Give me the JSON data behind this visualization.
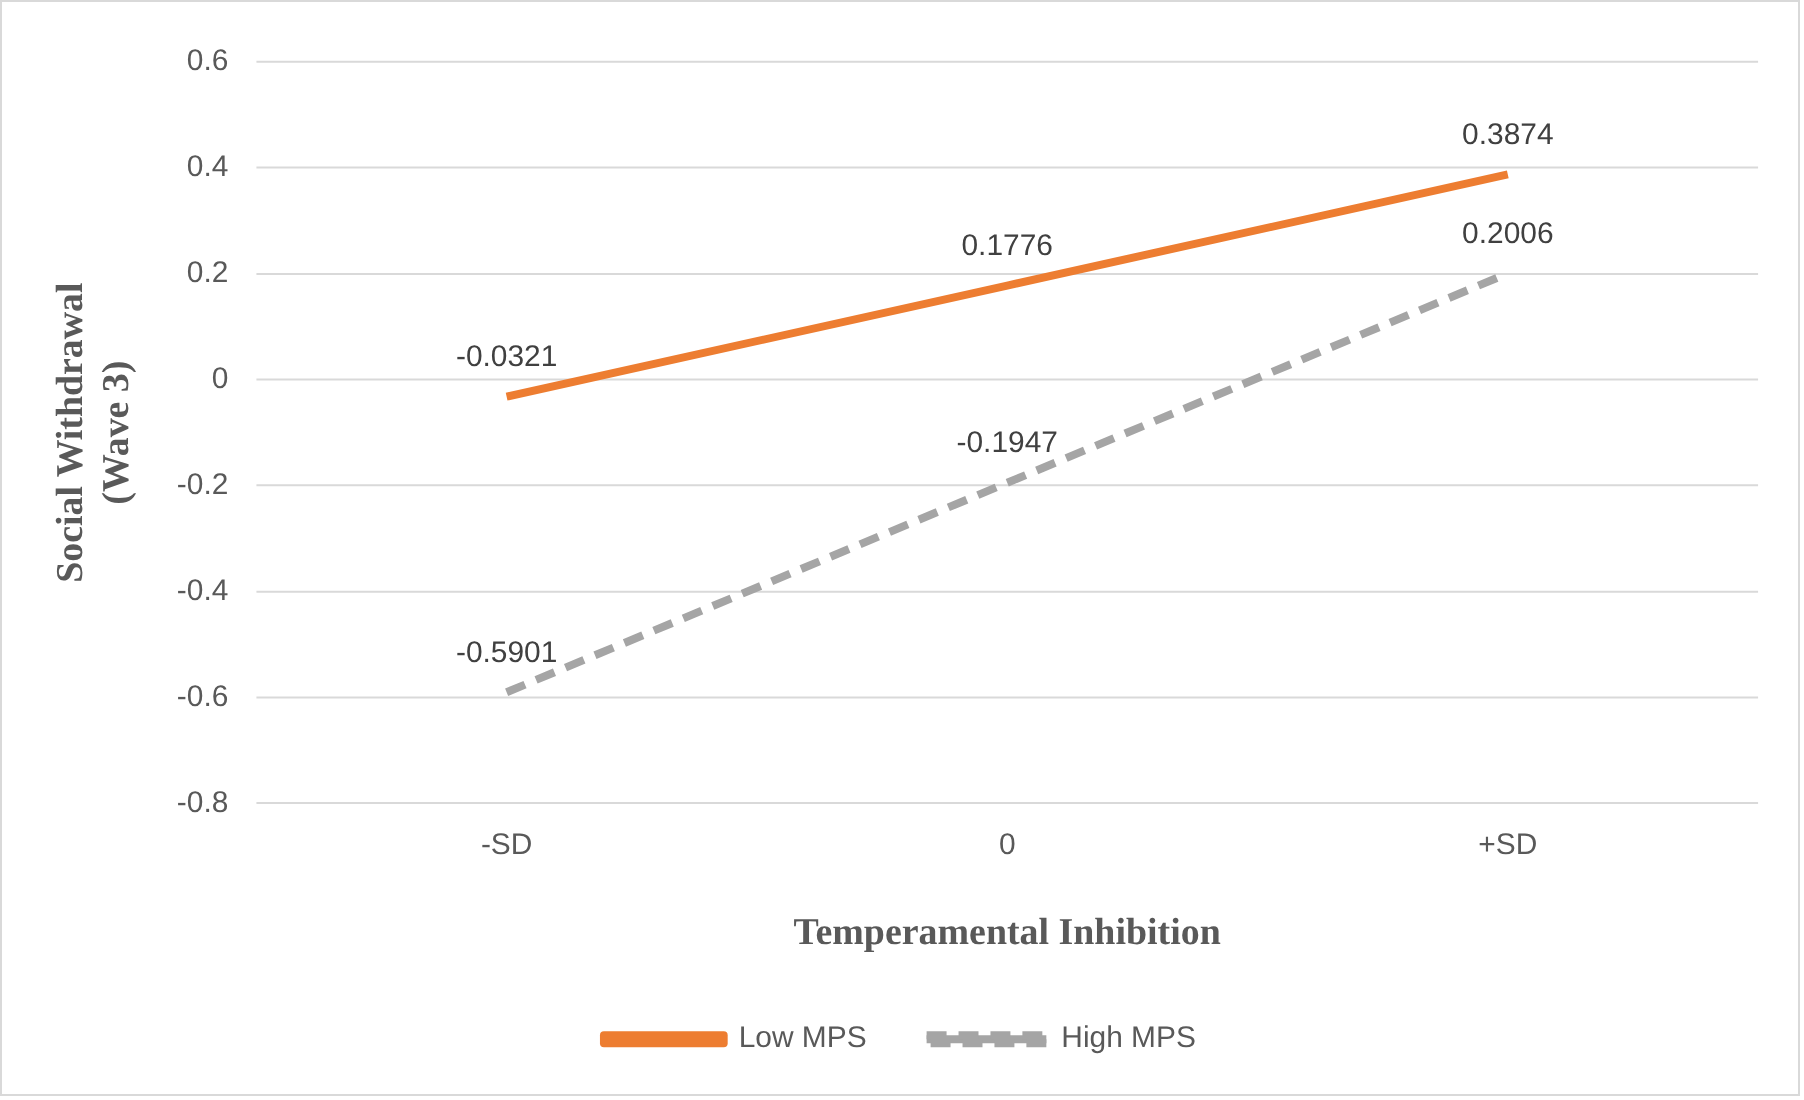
{
  "chart_data": {
    "type": "line",
    "xlabel": "Temperamental Inhibition",
    "ylabel": "Social Withdrawal\n(Wave 3)",
    "categories": [
      "-SD",
      "0",
      "+SD"
    ],
    "series": [
      {
        "name": "Low MPS",
        "color": "#ed7d31",
        "values": [
          -0.0321,
          0.1776,
          0.3874
        ],
        "line_style": "solid"
      },
      {
        "name": "High MPS",
        "color": "#a5a5a5",
        "values": [
          -0.5901,
          -0.1947,
          0.2006
        ],
        "line_style": "dashed"
      }
    ],
    "ylim": [
      -0.8,
      0.6
    ],
    "yticks": [
      -0.8,
      -0.6,
      -0.4,
      -0.2,
      0,
      0.2,
      0.4,
      0.6
    ],
    "grid": "y",
    "legend": "bottom",
    "marker": "none",
    "data_labels": true
  }
}
